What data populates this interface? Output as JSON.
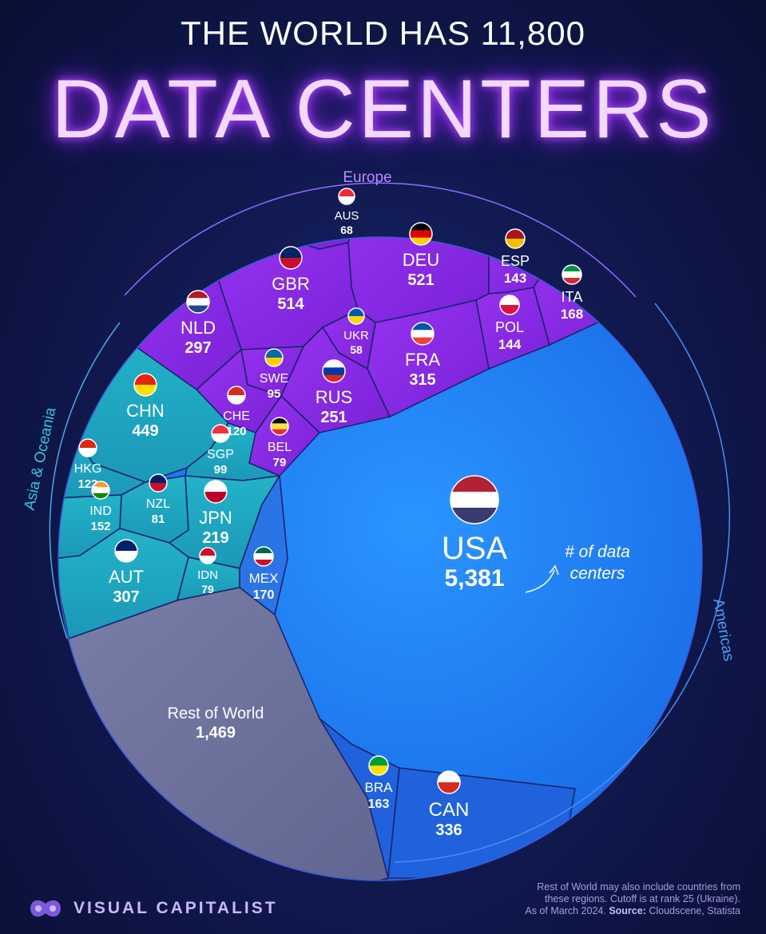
{
  "header": {
    "title_top": "THE WORLD HAS 11,800",
    "title_main": "DATA CENTERS"
  },
  "colors": {
    "europe": "#8a2be2",
    "asia": "#20a8c0",
    "usa": "#1e7bff",
    "americas": "#1f60dc",
    "rest": "#6e7199"
  },
  "chart_data": {
    "type": "treemap",
    "title": "THE WORLD HAS 11,800 DATA CENTERS",
    "regions": [
      "Europe",
      "Asia & Oceania",
      "Americas"
    ],
    "cells": [
      {
        "name": "USA",
        "value": 5381,
        "region": "Americas"
      },
      {
        "name": "CAN",
        "value": 336,
        "region": "Americas"
      },
      {
        "name": "BRA",
        "value": 163,
        "region": "Americas"
      },
      {
        "name": "MEX",
        "value": 170,
        "region": "Americas"
      },
      {
        "name": "DEU",
        "value": 521,
        "region": "Europe"
      },
      {
        "name": "GBR",
        "value": 514,
        "region": "Europe"
      },
      {
        "name": "FRA",
        "value": 315,
        "region": "Europe"
      },
      {
        "name": "NLD",
        "value": 297,
        "region": "Europe"
      },
      {
        "name": "RUS",
        "value": 251,
        "region": "Europe"
      },
      {
        "name": "ITA",
        "value": 168,
        "region": "Europe"
      },
      {
        "name": "POL",
        "value": 144,
        "region": "Europe"
      },
      {
        "name": "ESP",
        "value": 143,
        "region": "Europe"
      },
      {
        "name": "CHE",
        "value": 120,
        "region": "Europe"
      },
      {
        "name": "SWE",
        "value": 95,
        "region": "Europe"
      },
      {
        "name": "BEL",
        "value": 79,
        "region": "Europe"
      },
      {
        "name": "AUS",
        "value": 68,
        "region": "Europe"
      },
      {
        "name": "UKR",
        "value": 58,
        "region": "Europe"
      },
      {
        "name": "CHN",
        "value": 449,
        "region": "Asia & Oceania"
      },
      {
        "name": "AUT",
        "value": 307,
        "region": "Asia & Oceania"
      },
      {
        "name": "JPN",
        "value": 219,
        "region": "Asia & Oceania"
      },
      {
        "name": "IND",
        "value": 152,
        "region": "Asia & Oceania"
      },
      {
        "name": "HKG",
        "value": 122,
        "region": "Asia & Oceania"
      },
      {
        "name": "SGP",
        "value": 99,
        "region": "Asia & Oceania"
      },
      {
        "name": "NZL",
        "value": 81,
        "region": "Asia & Oceania"
      },
      {
        "name": "IDN",
        "value": 79,
        "region": "Asia & Oceania"
      },
      {
        "name": "Rest of World",
        "value": 1469,
        "region": ""
      }
    ],
    "annotation": "# of data centers"
  },
  "labels": {
    "USA": {
      "name": "USA",
      "value": "5,381"
    },
    "CAN": {
      "name": "CAN",
      "value": "336"
    },
    "BRA": {
      "name": "BRA",
      "value": "163"
    },
    "MEX": {
      "name": "MEX",
      "value": "170"
    },
    "DEU": {
      "name": "DEU",
      "value": "521"
    },
    "GBR": {
      "name": "GBR",
      "value": "514"
    },
    "FRA": {
      "name": "FRA",
      "value": "315"
    },
    "NLD": {
      "name": "NLD",
      "value": "297"
    },
    "RUS": {
      "name": "RUS",
      "value": "251"
    },
    "ITA": {
      "name": "ITA",
      "value": "168"
    },
    "POL": {
      "name": "POL",
      "value": "144"
    },
    "ESP": {
      "name": "ESP",
      "value": "143"
    },
    "CHE": {
      "name": "CHE",
      "value": "120"
    },
    "SWE": {
      "name": "SWE",
      "value": "95"
    },
    "BEL": {
      "name": "BEL",
      "value": "79"
    },
    "AUS": {
      "name": "AUS",
      "value": "68"
    },
    "UKR": {
      "name": "UKR",
      "value": "58"
    },
    "CHN": {
      "name": "CHN",
      "value": "449"
    },
    "AUT": {
      "name": "AUT",
      "value": "307"
    },
    "JPN": {
      "name": "JPN",
      "value": "219"
    },
    "IND": {
      "name": "IND",
      "value": "152"
    },
    "HKG": {
      "name": "HKG",
      "value": "122"
    },
    "SGP": {
      "name": "SGP",
      "value": "99"
    },
    "NZL": {
      "name": "NZL",
      "value": "81"
    },
    "IDN": {
      "name": "IDN",
      "value": "79"
    },
    "ROW": {
      "name": "Rest of World",
      "value": "1,469"
    }
  },
  "regions": {
    "europe": "Europe",
    "asia": "Asia & Oceania",
    "americas": "Americas"
  },
  "annotation": {
    "line1": "# of data",
    "line2": "centers"
  },
  "footer": {
    "brand": "VISUAL CAPITALIST",
    "note1": "Rest of World may also include countries from",
    "note2": "these regions. Cutoff is at rank 25 (Ukraine).",
    "note3": "As of March 2024.",
    "source_label": "Source:",
    "source": "Cloudscene, Statista"
  }
}
